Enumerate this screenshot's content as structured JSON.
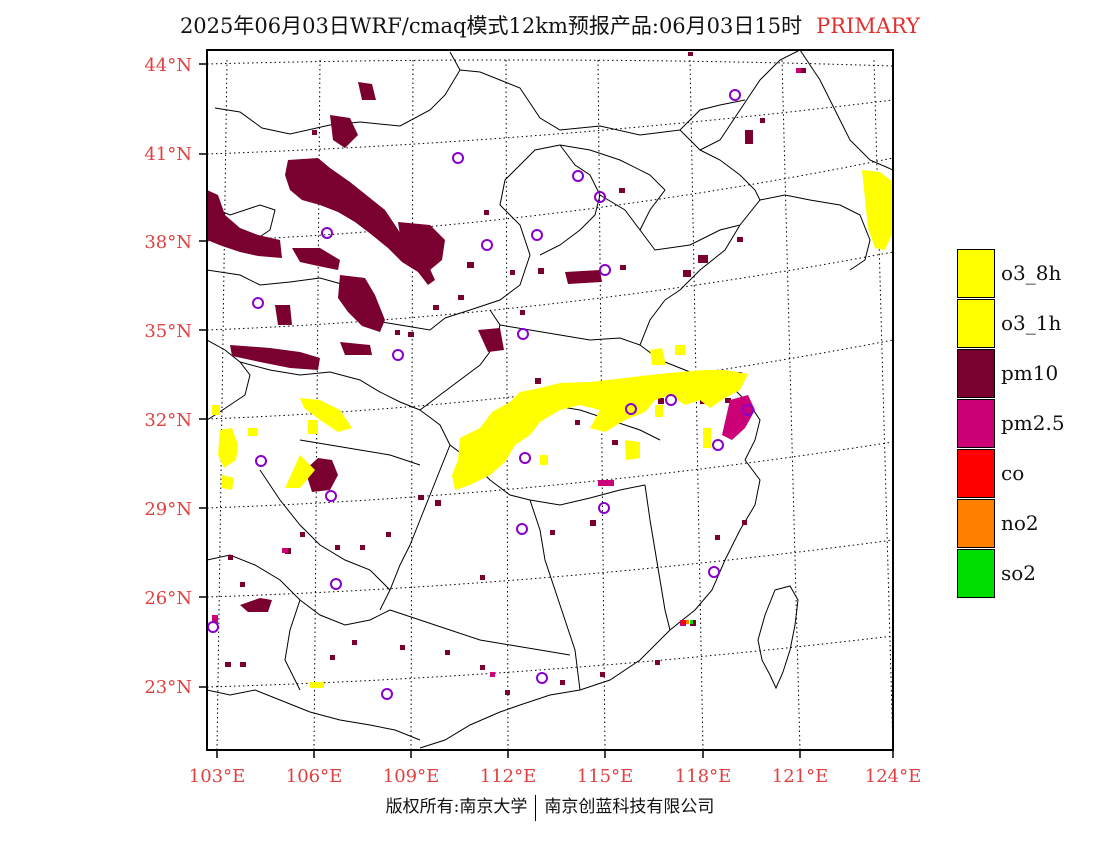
{
  "title": {
    "main": "2025年06月03日WRF/cmaq模式12km预报产品:06月03日15时",
    "tag": "PRIMARY"
  },
  "lat_labels": [
    "44°N",
    "41°N",
    "38°N",
    "35°N",
    "32°N",
    "29°N",
    "26°N",
    "23°N"
  ],
  "lon_labels": [
    "103°E",
    "106°E",
    "109°E",
    "112°E",
    "115°E",
    "118°E",
    "121°E",
    "124°E"
  ],
  "legend": [
    {
      "label": "o3_8h",
      "color": "#ffff00"
    },
    {
      "label": "o3_1h",
      "color": "#ffff00"
    },
    {
      "label": "pm10",
      "color": "#7a0030"
    },
    {
      "label": "pm2.5",
      "color": "#cc0077"
    },
    {
      "label": "co",
      "color": "#ff0000"
    },
    {
      "label": "no2",
      "color": "#ff8000"
    },
    {
      "label": "so2",
      "color": "#00dd00"
    }
  ],
  "copyright": {
    "left": "版权所有:南京大学",
    "right": "南京创蓝科技有限公司"
  }
}
